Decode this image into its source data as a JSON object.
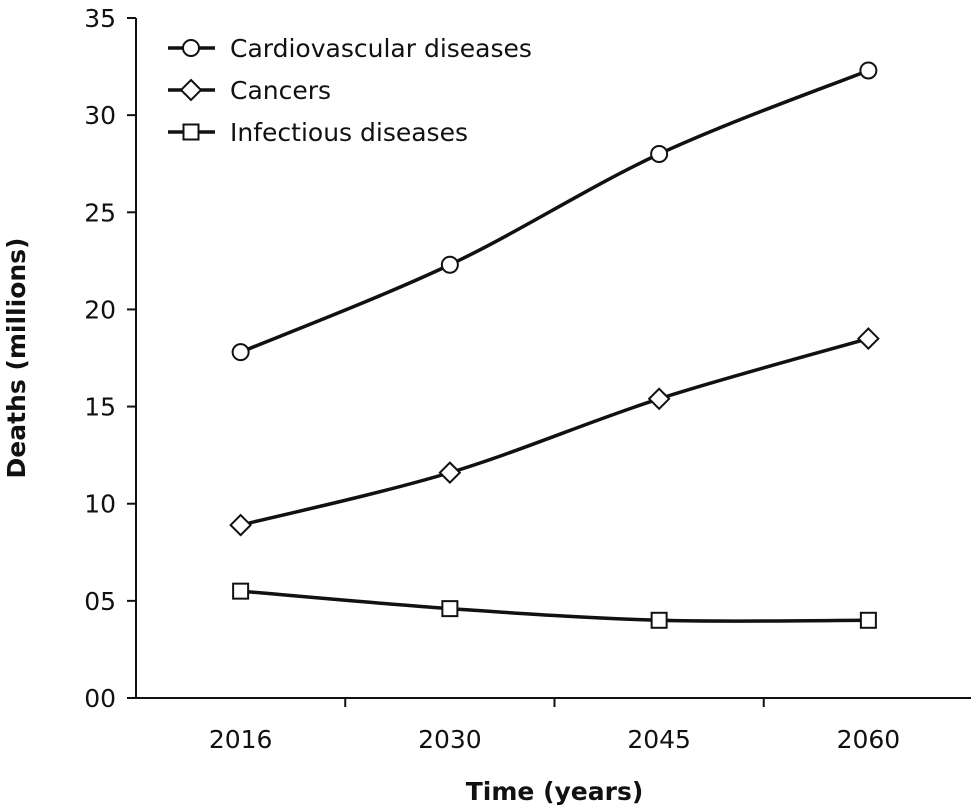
{
  "chart_data": {
    "type": "line",
    "title": "",
    "xlabel": "Time (years)",
    "ylabel": "Deaths (millions)",
    "categories": [
      "2016",
      "2030",
      "2045",
      "2060"
    ],
    "ylim": [
      0,
      35
    ],
    "y_ticks": [
      "00",
      "05",
      "10",
      "15",
      "20",
      "25",
      "30",
      "35"
    ],
    "grid": false,
    "legend_position": "top-left",
    "series": [
      {
        "name": "Cardiovascular diseases",
        "marker": "circle",
        "values": [
          17.8,
          22.3,
          28.0,
          32.3
        ]
      },
      {
        "name": "Cancers",
        "marker": "diamond",
        "values": [
          8.9,
          11.6,
          15.4,
          18.5
        ]
      },
      {
        "name": "Infectious diseases",
        "marker": "square",
        "values": [
          5.5,
          4.6,
          4.0,
          4.0
        ]
      }
    ],
    "colors": {
      "line": "#111111",
      "marker_fill": "#ffffff"
    }
  }
}
